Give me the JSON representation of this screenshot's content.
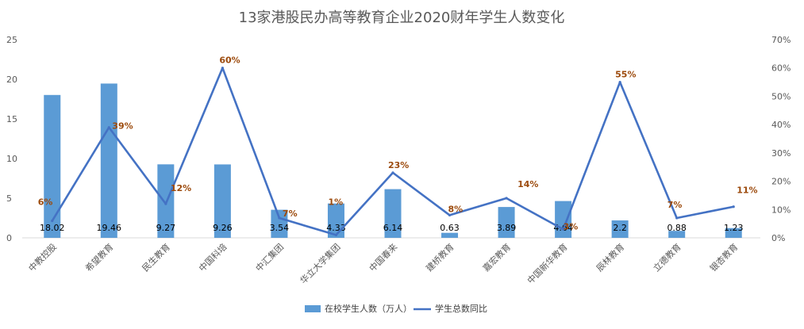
{
  "chart_data": {
    "type": "bar",
    "title": "13家港股民办高等教育企业2020财年学生人数变化",
    "categories": [
      "中教控股",
      "希望教育",
      "民生教育",
      "中国科培",
      "中汇集团",
      "华立大学集团",
      "中国春来",
      "建桥教育",
      "嘉宏教育",
      "中国新华教育",
      "辰林教育",
      "立德教育",
      "银杏教育"
    ],
    "series": [
      {
        "name": "在校学生人数（万人）",
        "kind": "bar",
        "axis": "left",
        "values": [
          18.02,
          19.46,
          9.27,
          9.26,
          3.54,
          4.33,
          6.14,
          0.63,
          3.89,
          4.64,
          2.2,
          0.88,
          1.23
        ],
        "labels": [
          "18.02",
          "19.46",
          "9.27",
          "9.26",
          "3.54",
          "4.33",
          "6.14",
          "0.63",
          "3.89",
          "4.64",
          "2.2",
          "0.88",
          "1.23"
        ],
        "color": "#5B9BD5"
      },
      {
        "name": "学生总数同比",
        "kind": "line",
        "axis": "right",
        "values": [
          6,
          39,
          12,
          60,
          7,
          1,
          23,
          8,
          14,
          3,
          55,
          7,
          11
        ],
        "labels": [
          "6%",
          "39%",
          "12%",
          "60%",
          "7%",
          "1%",
          "23%",
          "8%",
          "14%",
          "3%",
          "55%",
          "7%",
          "11%"
        ],
        "color": "#4472C4"
      }
    ],
    "ylim_left": [
      0,
      25
    ],
    "yticks_left": [
      "0",
      "5",
      "10",
      "15",
      "20",
      "25"
    ],
    "ylim_right": [
      0,
      70
    ],
    "yticks_right": [
      "0%",
      "10%",
      "20%",
      "30%",
      "40%",
      "50%",
      "60%",
      "70%"
    ],
    "grid": false,
    "legend_position": "bottom"
  }
}
